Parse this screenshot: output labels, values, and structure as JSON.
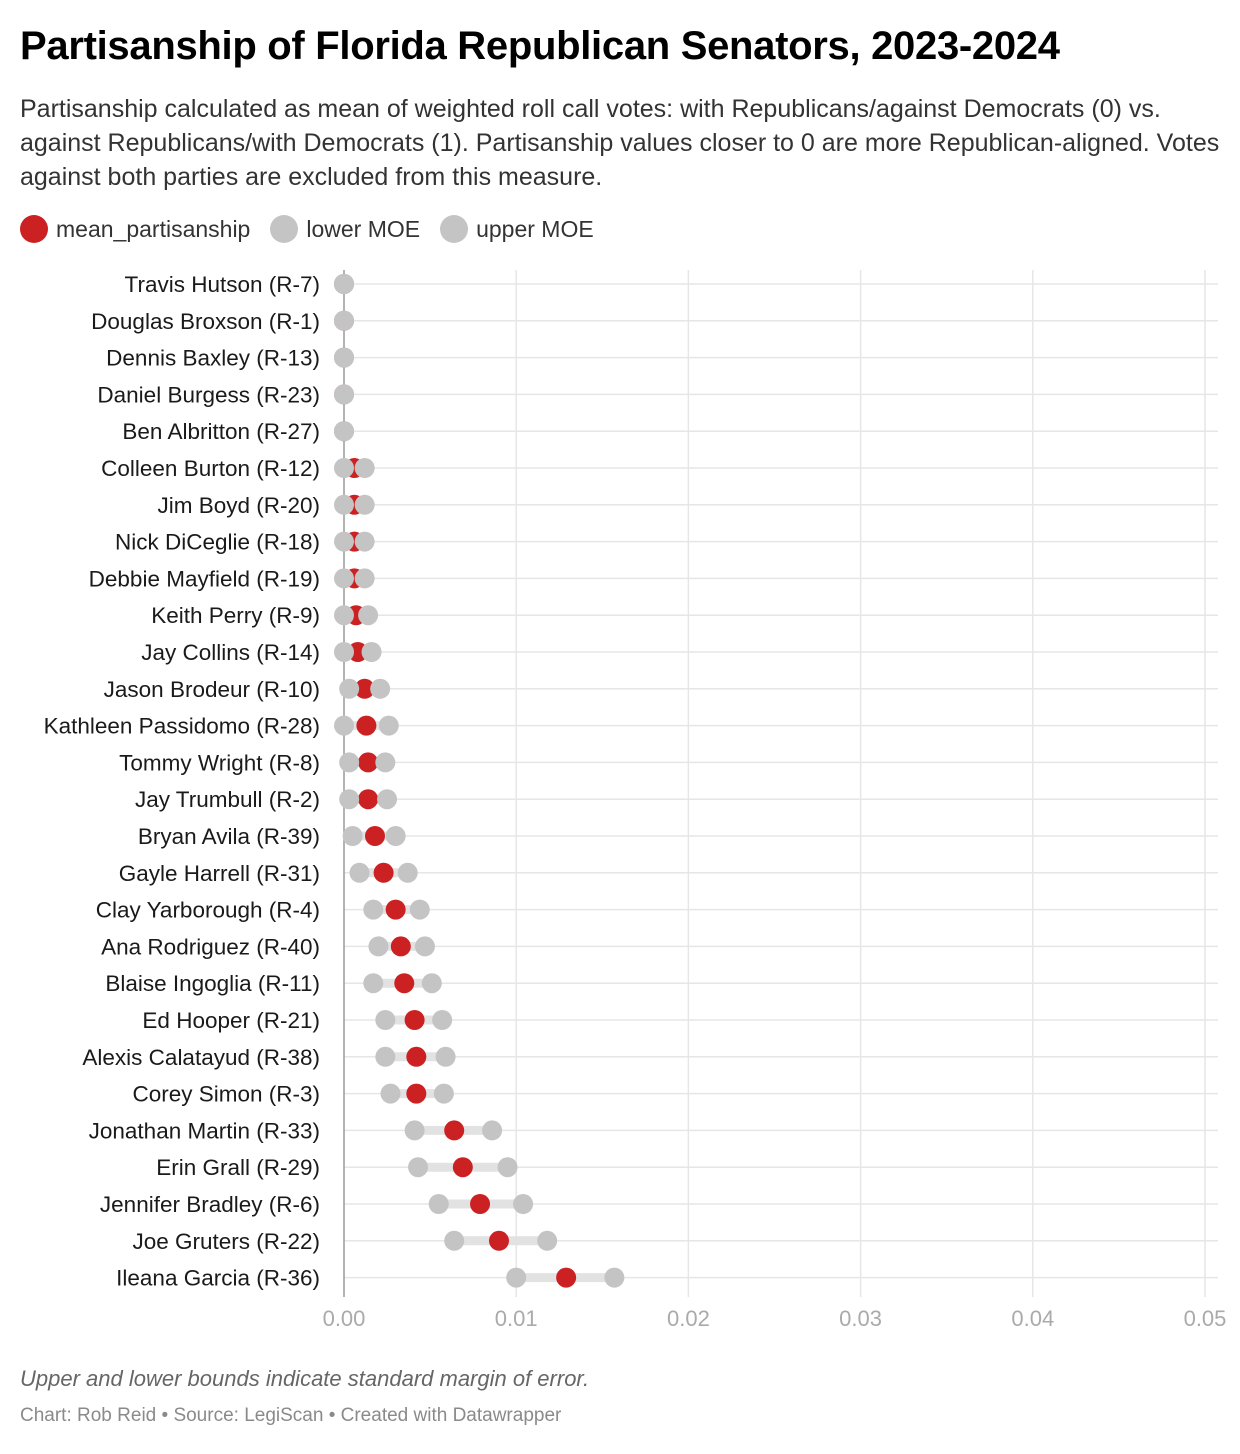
{
  "header": {
    "title": "Partisanship of Florida Republican Senators, 2023-2024",
    "subtitle": "Partisanship calculated as mean of weighted roll call votes: with Republicans/against Democrats (0) vs. against Republicans/with Democrats (1). Partisanship values closer to 0 are more Republican-aligned. Votes against both parties are excluded from this measure."
  },
  "legend": [
    {
      "label": "mean_partisanship",
      "color": "#cc2122"
    },
    {
      "label": "lower MOE",
      "color": "#c4c4c4"
    },
    {
      "label": "upper MOE",
      "color": "#c4c4c4"
    }
  ],
  "footer": {
    "notes": "Upper and lower bounds indicate standard margin of error.",
    "byline": "Chart: Rob Reid • Source: LegiScan • Created with Datawrapper"
  },
  "chart_data": {
    "type": "range-dot",
    "x_ticks": [
      {
        "value": 0,
        "label": "0.00"
      },
      {
        "value": 0.01,
        "label": "0.01"
      },
      {
        "value": 0.02,
        "label": "0.02"
      },
      {
        "value": 0.03,
        "label": "0.03"
      },
      {
        "value": 0.04,
        "label": "0.04"
      },
      {
        "value": 0.05,
        "label": "0.05"
      }
    ],
    "xlim": [
      0,
      0.05
    ],
    "grid": true,
    "series_names": [
      "mean_partisanship",
      "lower MOE",
      "upper MOE"
    ],
    "rows": [
      {
        "name": "Travis Hutson (R-7)",
        "mean": 0,
        "lower": 0,
        "upper": 0
      },
      {
        "name": "Douglas Broxson (R-1)",
        "mean": 0,
        "lower": 0,
        "upper": 0
      },
      {
        "name": "Dennis Baxley (R-13)",
        "mean": 0,
        "lower": 0,
        "upper": 0
      },
      {
        "name": "Daniel Burgess (R-23)",
        "mean": 0,
        "lower": 0,
        "upper": 0
      },
      {
        "name": "Ben Albritton (R-27)",
        "mean": 0,
        "lower": 0,
        "upper": 0
      },
      {
        "name": "Colleen Burton (R-12)",
        "mean": 0.0006,
        "lower": 0,
        "upper": 0.0012
      },
      {
        "name": "Jim Boyd (R-20)",
        "mean": 0.0006,
        "lower": 0,
        "upper": 0.0012
      },
      {
        "name": "Nick DiCeglie (R-18)",
        "mean": 0.0006,
        "lower": 0,
        "upper": 0.0012
      },
      {
        "name": "Debbie Mayfield (R-19)",
        "mean": 0.0006,
        "lower": 0,
        "upper": 0.0012
      },
      {
        "name": "Keith Perry (R-9)",
        "mean": 0.0007,
        "lower": 0,
        "upper": 0.0014
      },
      {
        "name": "Jay Collins (R-14)",
        "mean": 0.0008,
        "lower": 0,
        "upper": 0.0016
      },
      {
        "name": "Jason Brodeur (R-10)",
        "mean": 0.0012,
        "lower": 0.0003,
        "upper": 0.0021
      },
      {
        "name": "Kathleen Passidomo (R-28)",
        "mean": 0.0013,
        "lower": 0,
        "upper": 0.0026
      },
      {
        "name": "Tommy Wright (R-8)",
        "mean": 0.0014,
        "lower": 0.0003,
        "upper": 0.0024
      },
      {
        "name": "Jay Trumbull (R-2)",
        "mean": 0.0014,
        "lower": 0.0003,
        "upper": 0.0025
      },
      {
        "name": "Bryan Avila (R-39)",
        "mean": 0.0018,
        "lower": 0.0005,
        "upper": 0.003
      },
      {
        "name": "Gayle Harrell (R-31)",
        "mean": 0.0023,
        "lower": 0.0009,
        "upper": 0.0037
      },
      {
        "name": "Clay Yarborough (R-4)",
        "mean": 0.003,
        "lower": 0.0017,
        "upper": 0.0044
      },
      {
        "name": "Ana Rodriguez (R-40)",
        "mean": 0.0033,
        "lower": 0.002,
        "upper": 0.0047
      },
      {
        "name": "Blaise Ingoglia (R-11)",
        "mean": 0.0035,
        "lower": 0.0017,
        "upper": 0.0051
      },
      {
        "name": "Ed Hooper (R-21)",
        "mean": 0.0041,
        "lower": 0.0024,
        "upper": 0.0057
      },
      {
        "name": "Alexis Calatayud (R-38)",
        "mean": 0.0042,
        "lower": 0.0024,
        "upper": 0.0059
      },
      {
        "name": "Corey Simon (R-3)",
        "mean": 0.0042,
        "lower": 0.0027,
        "upper": 0.0058
      },
      {
        "name": "Jonathan Martin (R-33)",
        "mean": 0.0064,
        "lower": 0.0041,
        "upper": 0.0086
      },
      {
        "name": "Erin Grall (R-29)",
        "mean": 0.0069,
        "lower": 0.0043,
        "upper": 0.0095
      },
      {
        "name": "Jennifer Bradley (R-6)",
        "mean": 0.0079,
        "lower": 0.0055,
        "upper": 0.0104
      },
      {
        "name": "Joe Gruters (R-22)",
        "mean": 0.009,
        "lower": 0.0064,
        "upper": 0.0118
      },
      {
        "name": "Ileana Garcia (R-36)",
        "mean": 0.0129,
        "lower": 0.01,
        "upper": 0.0157
      }
    ],
    "colors": {
      "mean": "#cc2122",
      "moe": "#c4c4c4",
      "range_bar": "#e2e2e2",
      "grid": "#e6e6e6",
      "axis_label": "#aaaaaa"
    }
  }
}
